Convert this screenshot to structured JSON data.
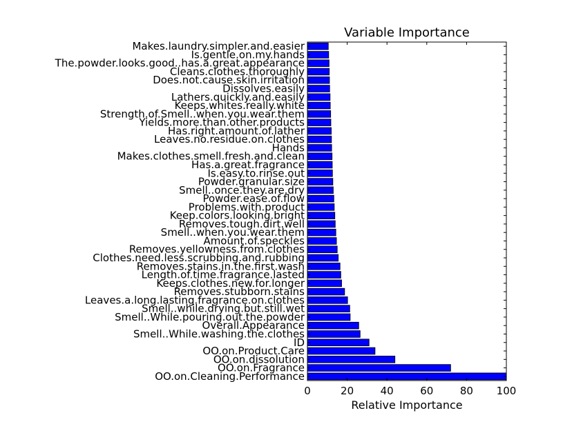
{
  "chart_data": {
    "type": "bar",
    "orientation": "horizontal",
    "title": "Variable Importance",
    "xlabel": "Relative Importance",
    "ylabel": "",
    "xlim": [
      0,
      100
    ],
    "xticks": [
      0,
      20,
      40,
      60,
      80,
      100
    ],
    "grid": false,
    "bar_color": "#0000ff",
    "categories": [
      "Makes.laundry.simpler.and.easier",
      "Is.gentle.on.my.hands",
      "The.powder.looks.good..has.a.great.appearance",
      "Cleans.clothes.thoroughly",
      "Does.not.cause.skin.irritation",
      "Dissolves.easily",
      "Lathers.quickly.and.easily",
      "Keeps.whites.really.white",
      "Strength.of.Smell..when.you.wear.them",
      "Yields.more.than.other.products",
      "Has.right.amount.of.lather",
      "Leaves.no.residue.on.clothes",
      "Hands",
      "Makes.clothes.smell.fresh.and.clean",
      "Has.a.great.fragrance",
      "Is.easy.to.rinse.out",
      "Powder.granular.size",
      "Smell..once.they.are.dry",
      "Powder.ease.of.flow",
      "Problems.with.product",
      "Keep.colors.looking.bright",
      "Removes.tough.dirt.well",
      "Smell..when.you.wear.them",
      "Amount.of.speckles",
      "Removes.yellowness.from.clothes",
      "Clothes.need.less.scrubbing.and.rubbing",
      "Removes.stains.in.the.first.wash",
      "Length.of.time.fragrance.lasted",
      "Keeps.clothes.new.for.longer",
      "Removes.stubborn.stains",
      "Leaves.a.long.lasting.fragrance.on.clothes",
      "Smell..while.drying.but.still.wet",
      "Smell..While.pouring.out.the.powder",
      "Overall.Appearance",
      "Smell..While.washing.the.clothes",
      "ID",
      "OO.on.Product.Care",
      "OO.on.dissolution",
      "OO.on.Fragrance",
      "OO.on.Cleaning.Performance"
    ],
    "values": [
      10.5,
      10.7,
      10.9,
      11.0,
      11.1,
      11.2,
      11.4,
      11.5,
      11.7,
      11.8,
      12.0,
      12.1,
      12.2,
      12.4,
      12.5,
      12.6,
      12.8,
      13.0,
      13.3,
      13.5,
      13.8,
      14.0,
      14.3,
      14.6,
      15.0,
      15.5,
      16.4,
      16.8,
      17.2,
      18.7,
      20.2,
      21.3,
      21.5,
      25.8,
      26.5,
      31.0,
      34.0,
      44.0,
      72.0,
      100.0
    ]
  }
}
